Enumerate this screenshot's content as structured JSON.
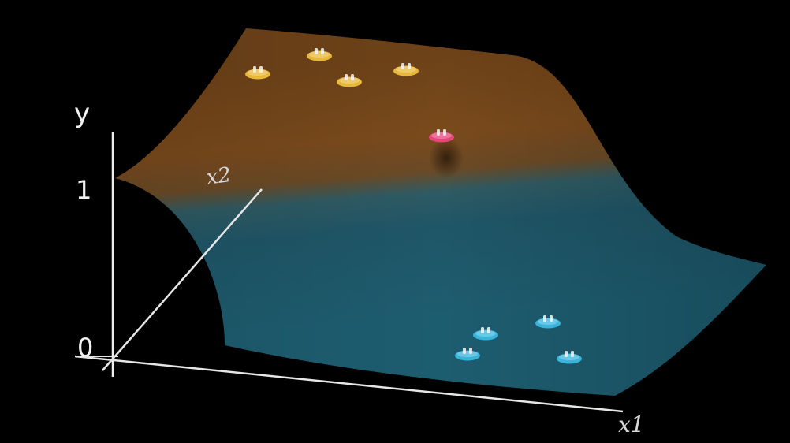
{
  "axes": {
    "y_label": "y",
    "x2_label": "x2",
    "x1_label": "x1",
    "tick_top": "1",
    "tick_bottom": "0"
  },
  "colors": {
    "background": "#000000",
    "surface_high": "#7a4a1a",
    "surface_low": "#1f5566",
    "axis": "#f0f0f0",
    "marker_yellow": "#e7b83a",
    "marker_blue": "#39b5dc",
    "marker_pink": "#e4457a"
  },
  "markers": [
    {
      "group": "yellow",
      "color": "marker_yellow"
    },
    {
      "group": "yellow",
      "color": "marker_yellow"
    },
    {
      "group": "yellow",
      "color": "marker_yellow"
    },
    {
      "group": "yellow",
      "color": "marker_yellow"
    },
    {
      "group": "pink",
      "color": "marker_pink"
    },
    {
      "group": "blue",
      "color": "marker_blue"
    },
    {
      "group": "blue",
      "color": "marker_blue"
    },
    {
      "group": "blue",
      "color": "marker_blue"
    },
    {
      "group": "blue",
      "color": "marker_blue"
    }
  ]
}
